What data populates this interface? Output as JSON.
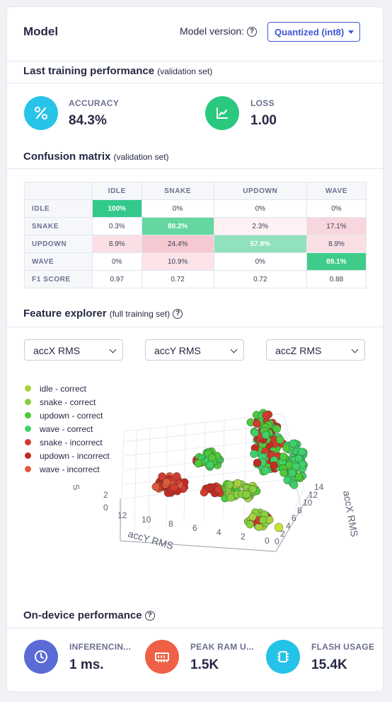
{
  "model": {
    "title": "Model",
    "version_label": "Model version:",
    "version_value": "Quantized (int8)"
  },
  "training": {
    "title": "Last training performance",
    "subtitle": "(validation set)",
    "accuracy_label": "ACCURACY",
    "accuracy_value": "84.3%",
    "loss_label": "LOSS",
    "loss_value": "1.00"
  },
  "confusion": {
    "title": "Confusion matrix",
    "subtitle": "(validation set)",
    "columns": [
      "IDLE",
      "SNAKE",
      "UPDOWN",
      "WAVE"
    ],
    "rows": [
      {
        "label": "IDLE",
        "cells": [
          "100%",
          "0%",
          "0%",
          "0%"
        ]
      },
      {
        "label": "SNAKE",
        "cells": [
          "0.3%",
          "80.2%",
          "2.3%",
          "17.1%"
        ]
      },
      {
        "label": "UPDOWN",
        "cells": [
          "8.9%",
          "24.4%",
          "57.9%",
          "8.9%"
        ]
      },
      {
        "label": "WAVE",
        "cells": [
          "0%",
          "10.9%",
          "0%",
          "89.1%"
        ]
      }
    ],
    "f1_label": "F1 SCORE",
    "f1": [
      "0.97",
      "0.72",
      "0.72",
      "0.88"
    ]
  },
  "explorer": {
    "title": "Feature explorer",
    "subtitle": "(full training set)",
    "x_select": "accX RMS",
    "y_select": "accY RMS",
    "z_select": "accZ RMS",
    "legend": [
      {
        "label": "idle - correct",
        "color": "#a5d13f"
      },
      {
        "label": "snake - correct",
        "color": "#86cf3f"
      },
      {
        "label": "updown - correct",
        "color": "#4ec93a"
      },
      {
        "label": "wave - correct",
        "color": "#3fd06a"
      },
      {
        "label": "snake - incorrect",
        "color": "#d23a2e"
      },
      {
        "label": "updown - incorrect",
        "color": "#c42a24"
      },
      {
        "label": "wave - incorrect",
        "color": "#df5a3c"
      }
    ],
    "axis_y_label": "accY RMS",
    "axis_x_label": "accX RMS",
    "y_ticks": [
      "12",
      "10",
      "8",
      "6",
      "4",
      "2",
      "0"
    ],
    "x_ticks": [
      "0",
      "2",
      "4",
      "6",
      "8",
      "10",
      "12",
      "14"
    ],
    "z_ticks": [
      "0",
      "2"
    ],
    "z_cut_label": "S"
  },
  "ondevice": {
    "title": "On-device performance",
    "inferencing_label": "INFERENCIN...",
    "inferencing_value": "1 ms.",
    "ram_label": "PEAK RAM U...",
    "ram_value": "1.5K",
    "flash_label": "FLASH USAGE",
    "flash_value": "15.4K"
  }
}
